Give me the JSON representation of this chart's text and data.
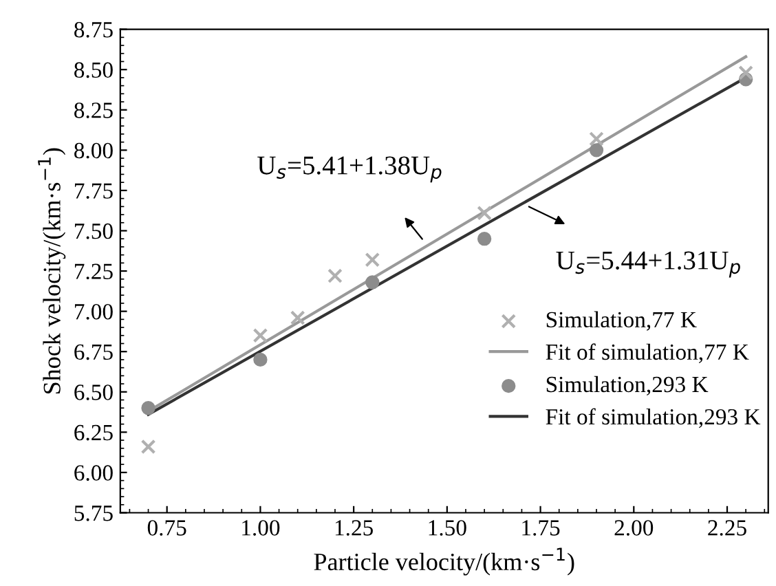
{
  "chart_data": {
    "type": "scatter",
    "xlabel": "Particle velocity/(km·s$^{−1}$)",
    "ylabel": "Shock velocity/(km·s$^{−1}$)",
    "xlim": [
      0.625,
      2.36
    ],
    "ylim": [
      5.75,
      8.75
    ],
    "xticks": [
      0.75,
      {
        "value": 1,
        "label": "1.00"
      },
      1.25,
      {
        "value": 1.5,
        "label": "1.50"
      },
      1.75,
      {
        "value": 2,
        "label": "2.00"
      },
      2.25
    ],
    "yticks": [
      5.75,
      {
        "value": 6,
        "label": "6.00"
      },
      6.25,
      {
        "value": 6.5,
        "label": "6.50"
      },
      6.75,
      {
        "value": 7,
        "label": "7.00"
      },
      7.25,
      {
        "value": 7.5,
        "label": "7.50"
      },
      7.75,
      {
        "value": 8,
        "label": "8.00"
      },
      8.25,
      {
        "value": 8.5,
        "label": "8.50"
      },
      8.75
    ],
    "grid": false,
    "legend": "bottom right",
    "series": [
      {
        "name": "Simulation,77 K",
        "marker": "cross",
        "color": "#b0b0b0",
        "x": [
          0.7,
          1.0,
          1.1,
          1.2,
          1.3,
          1.6,
          1.9,
          2.3
        ],
        "values": [
          6.16,
          6.85,
          6.96,
          7.22,
          7.32,
          7.61,
          8.07,
          8.48
        ]
      },
      {
        "name": "Fit of simulation,77 K",
        "type": "line",
        "color": "#999999",
        "x": [
          0.7,
          2.3
        ],
        "values": [
          6.38,
          8.58
        ]
      },
      {
        "name": "Simulation,293 K",
        "marker": "circle",
        "color": "#8c8c8c",
        "x": [
          0.7,
          1.0,
          1.3,
          1.6,
          1.9,
          2.3
        ],
        "values": [
          6.4,
          6.7,
          7.18,
          7.45,
          8.0,
          8.44
        ]
      },
      {
        "name": "Fit of simulation,293 K",
        "type": "line",
        "color": "#333333",
        "x": [
          0.7,
          2.3
        ],
        "values": [
          6.36,
          8.45
        ]
      }
    ],
    "annotations": [
      {
        "text": "U$_{s}$=5.41+1.38U$_{p}$",
        "x": 1.44,
        "y": 7.43
      },
      {
        "text": "U$_{s}$=5.44+1.31U$_{p}$",
        "x": 1.71,
        "y": 7.66
      }
    ]
  }
}
